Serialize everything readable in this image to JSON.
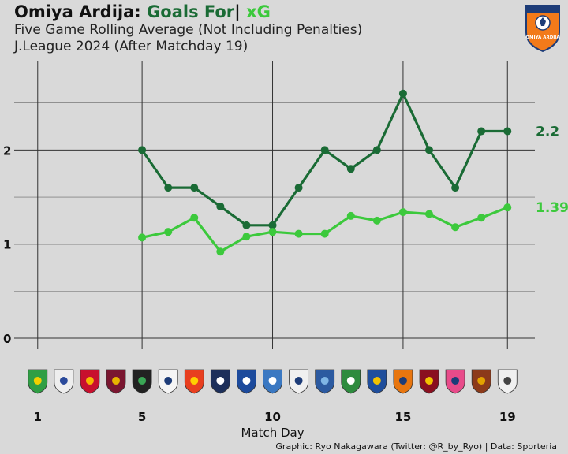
{
  "header": {
    "team": "Omiya Ardija:",
    "goals_label": "Goals For",
    "separator": "|",
    "xg_label": "xG",
    "subtitle1": "Five Game Rolling Average (Not Including Penalties)",
    "subtitle2": "J.League 2024 (After Matchday 19)"
  },
  "caption": "Graphic: Ryo Nakagawara (Twitter: @R_by_Ryo) | Data: Sporteria",
  "club_badge": {
    "name": "omiya-ardija-crest",
    "text": "OMIYA ARDIJA",
    "color": "#f27a1a"
  },
  "colors": {
    "goals": "#1a6b35",
    "xg": "#3cc93c",
    "grid": "#333333",
    "background": "#d9d9d9"
  },
  "opponent_badges": [
    {
      "matchday": 1,
      "icon": "opponent-crest-1",
      "fill": "#2f9e44",
      "accent": "#f2d000"
    },
    {
      "matchday": 2,
      "icon": "opponent-crest-2",
      "fill": "#eeeeee",
      "accent": "#2b4a9b"
    },
    {
      "matchday": 3,
      "icon": "opponent-crest-3",
      "fill": "#c8102e",
      "accent": "#f7b500"
    },
    {
      "matchday": 4,
      "icon": "opponent-crest-4",
      "fill": "#7a1630",
      "accent": "#e8b400"
    },
    {
      "matchday": 5,
      "icon": "opponent-crest-5",
      "fill": "#222222",
      "accent": "#3aa655"
    },
    {
      "matchday": 6,
      "icon": "opponent-crest-6",
      "fill": "#f5f5f5",
      "accent": "#1d3c78"
    },
    {
      "matchday": 7,
      "icon": "opponent-crest-7",
      "fill": "#e83f1f",
      "accent": "#ffd000"
    },
    {
      "matchday": 8,
      "icon": "opponent-crest-8",
      "fill": "#1d2f5a",
      "accent": "#ffffff"
    },
    {
      "matchday": 9,
      "icon": "opponent-crest-9",
      "fill": "#1c4a9c",
      "accent": "#ffffff"
    },
    {
      "matchday": 10,
      "icon": "opponent-crest-10",
      "fill": "#3a78c2",
      "accent": "#ffffff"
    },
    {
      "matchday": 11,
      "icon": "opponent-crest-11",
      "fill": "#f0f0f0",
      "accent": "#1d3c78"
    },
    {
      "matchday": 12,
      "icon": "opponent-crest-12",
      "fill": "#2c5aa0",
      "accent": "#7fb5e5"
    },
    {
      "matchday": 13,
      "icon": "opponent-crest-13",
      "fill": "#2e8b3e",
      "accent": "#ffffff"
    },
    {
      "matchday": 14,
      "icon": "opponent-crest-14",
      "fill": "#1f4e9c",
      "accent": "#f2c200"
    },
    {
      "matchday": 15,
      "icon": "opponent-crest-15",
      "fill": "#e8760f",
      "accent": "#1d3c78"
    },
    {
      "matchday": 16,
      "icon": "opponent-crest-16",
      "fill": "#8a1020",
      "accent": "#f2c200"
    },
    {
      "matchday": 17,
      "icon": "opponent-crest-17",
      "fill": "#e84b8a",
      "accent": "#1d3c78"
    },
    {
      "matchday": 18,
      "icon": "opponent-crest-18",
      "fill": "#8c3a1a",
      "accent": "#e3a200"
    },
    {
      "matchday": 19,
      "icon": "opponent-crest-19",
      "fill": "#f0f0f0",
      "accent": "#444444"
    }
  ],
  "chart_data": {
    "type": "line",
    "x": [
      5,
      6,
      7,
      8,
      9,
      10,
      11,
      12,
      13,
      14,
      15,
      16,
      17,
      18,
      19
    ],
    "xlabel": "Match Day",
    "ylabel": "",
    "xlim": [
      0.1,
      20.05
    ],
    "ylim": [
      -0.05,
      2.95
    ],
    "x_tick_labels": [
      "1",
      "5",
      "10",
      "15",
      "19"
    ],
    "x_tick_values": [
      1,
      5,
      10,
      15,
      19
    ],
    "y_tick_labels": [
      "0",
      "1",
      "2"
    ],
    "y_tick_values": [
      0,
      1,
      2
    ],
    "y_minor_gridlines": [
      0.5,
      1.5,
      2.5
    ],
    "grid": true,
    "series": [
      {
        "name": "Goals For",
        "values": [
          2.0,
          1.6,
          1.6,
          1.4,
          1.2,
          1.2,
          1.6,
          2.0,
          1.8,
          2.0,
          2.6,
          2.0,
          1.6,
          2.2,
          2.2
        ],
        "end_label": "2.2"
      },
      {
        "name": "xG",
        "values": [
          1.07,
          1.13,
          1.28,
          0.92,
          1.08,
          1.13,
          1.11,
          1.11,
          1.3,
          1.25,
          1.34,
          1.32,
          1.18,
          1.28,
          1.39
        ],
        "end_label": "1.39"
      }
    ]
  }
}
